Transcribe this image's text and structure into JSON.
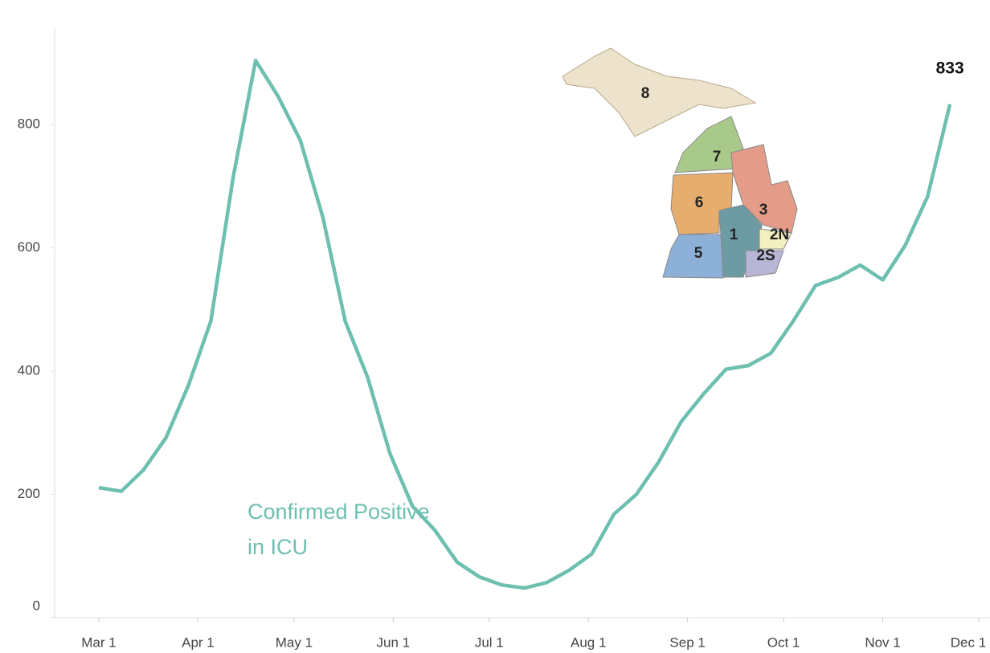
{
  "chart_data": {
    "type": "line",
    "x": [
      "Mar 1",
      "Mar 8",
      "Mar 15",
      "Mar 22",
      "Mar 29",
      "Apr 5",
      "Apr 12",
      "Apr 19",
      "Apr 26",
      "May 3",
      "May 10",
      "May 17",
      "May 24",
      "May 31",
      "Jun 7",
      "Jun 14",
      "Jun 21",
      "Jun 28",
      "Jul 5",
      "Jul 12",
      "Jul 19",
      "Jul 26",
      "Aug 2",
      "Aug 9",
      "Aug 16",
      "Aug 23",
      "Aug 30",
      "Sep 6",
      "Sep 13",
      "Sep 20",
      "Sep 27",
      "Oct 4",
      "Oct 11",
      "Oct 18",
      "Oct 25",
      "Nov 1",
      "Nov 8",
      "Nov 15",
      "Nov 22"
    ],
    "series": [
      {
        "name": "Confirmed Positive in ICU",
        "color": "#6dbfb0",
        "values": [
          211,
          205,
          240,
          292,
          377,
          481,
          715,
          904,
          846,
          774,
          650,
          481,
          390,
          266,
          181,
          142,
          90,
          66,
          53,
          48,
          57,
          77,
          103,
          168,
          200,
          253,
          318,
          363,
          403,
          409,
          429,
          481,
          539,
          552,
          572,
          548,
          604,
          683,
          833
        ]
      }
    ],
    "xlim": [
      "Mar 1",
      "Dec 1"
    ],
    "xticks": [
      "Mar 1",
      "Apr 1",
      "May 1",
      "Jun 1",
      "Jul 1",
      "Aug 1",
      "Sep 1",
      "Oct 1",
      "Nov 1",
      "Dec 1"
    ],
    "ylim": [
      0,
      950
    ],
    "yticks": [
      0,
      200,
      400,
      600,
      800
    ],
    "grid": false,
    "map_labels": [
      "8",
      "7",
      "6",
      "3",
      "1",
      "2N",
      "5",
      "2S"
    ]
  }
}
